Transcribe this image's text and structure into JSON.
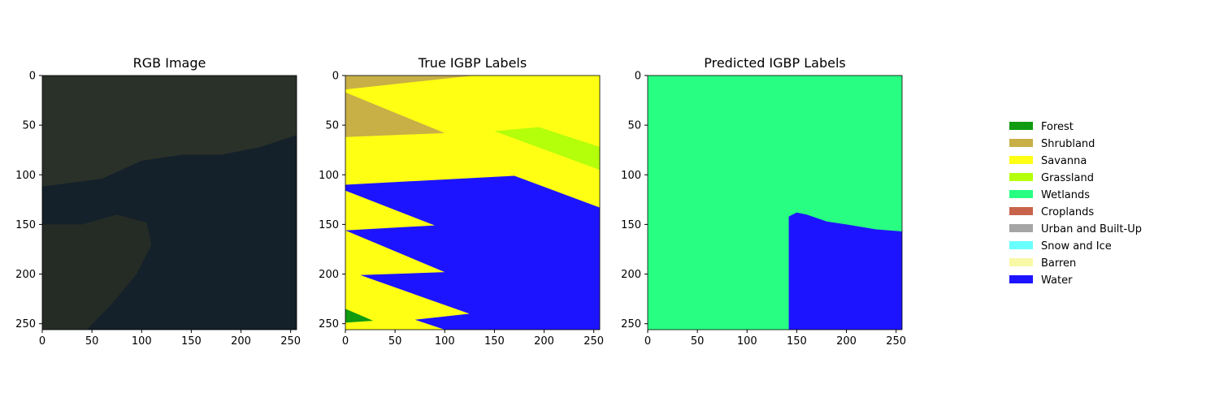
{
  "chart_data": [
    {
      "type": "heatmap",
      "title": "RGB Image",
      "xlim": [
        0,
        256
      ],
      "ylim": [
        256,
        0
      ],
      "xticks": [
        "0",
        "50",
        "100",
        "150",
        "200",
        "250"
      ],
      "yticks": [
        "0",
        "50",
        "100",
        "150",
        "200",
        "250"
      ],
      "regions": [
        {
          "name": "land",
          "color": "#2a3129",
          "points": [
            [
              0,
              0
            ],
            [
              256,
              0
            ],
            [
              256,
              60
            ],
            [
              220,
              72
            ],
            [
              180,
              80
            ],
            [
              140,
              80
            ],
            [
              100,
              86
            ],
            [
              60,
              104
            ],
            [
              0,
              112
            ]
          ]
        },
        {
          "name": "water",
          "color": "#14202a",
          "points": [
            [
              0,
              112
            ],
            [
              60,
              104
            ],
            [
              100,
              86
            ],
            [
              140,
              80
            ],
            [
              180,
              80
            ],
            [
              220,
              72
            ],
            [
              256,
              60
            ],
            [
              256,
              256
            ],
            [
              0,
              256
            ]
          ]
        },
        {
          "name": "island",
          "color": "#252c25",
          "points": [
            [
              0,
              150
            ],
            [
              40,
              150
            ],
            [
              75,
              140
            ],
            [
              105,
              148
            ],
            [
              110,
              170
            ],
            [
              95,
              200
            ],
            [
              70,
              230
            ],
            [
              45,
              256
            ],
            [
              0,
              256
            ]
          ]
        }
      ]
    },
    {
      "type": "heatmap",
      "title": "True IGBP Labels",
      "xlim": [
        0,
        256
      ],
      "ylim": [
        256,
        0
      ],
      "xticks": [
        "0",
        "50",
        "100",
        "150",
        "200",
        "250"
      ],
      "yticks": [
        "0",
        "50",
        "100",
        "150",
        "200",
        "250"
      ],
      "background": "Savanna",
      "regions": [
        {
          "class": "Shrubland",
          "points": [
            [
              0,
              0
            ],
            [
              130,
              0
            ],
            [
              0,
              14
            ]
          ]
        },
        {
          "class": "Shrubland",
          "points": [
            [
              0,
              17
            ],
            [
              100,
              58
            ],
            [
              0,
              62
            ]
          ]
        },
        {
          "class": "Grassland",
          "points": [
            [
              150,
              56
            ],
            [
              195,
              52
            ],
            [
              256,
              72
            ],
            [
              256,
              95
            ]
          ]
        },
        {
          "class": "Water",
          "points": [
            [
              0,
              110
            ],
            [
              170,
              101
            ],
            [
              256,
              133
            ],
            [
              256,
              256
            ],
            [
              100,
              256
            ],
            [
              70,
              246
            ],
            [
              125,
              240
            ],
            [
              15,
              201
            ],
            [
              100,
              198
            ],
            [
              0,
              156
            ],
            [
              90,
              151
            ],
            [
              0,
              116
            ]
          ]
        },
        {
          "class": "Forest",
          "points": [
            [
              0,
              235
            ],
            [
              28,
              247
            ],
            [
              0,
              249
            ]
          ]
        }
      ]
    },
    {
      "type": "heatmap",
      "title": "Predicted IGBP Labels",
      "xlim": [
        0,
        256
      ],
      "ylim": [
        256,
        0
      ],
      "xticks": [
        "0",
        "50",
        "100",
        "150",
        "200",
        "250"
      ],
      "yticks": [
        "0",
        "50",
        "100",
        "150",
        "200",
        "250"
      ],
      "background": "Wetlands",
      "regions": [
        {
          "class": "Water",
          "points": [
            [
              142,
              256
            ],
            [
              142,
              142
            ],
            [
              150,
              138
            ],
            [
              160,
              140
            ],
            [
              180,
              147
            ],
            [
              200,
              150
            ],
            [
              230,
              155
            ],
            [
              256,
              157
            ],
            [
              256,
              256
            ]
          ]
        }
      ]
    }
  ],
  "legend": {
    "placement": "right",
    "entries": [
      {
        "label": "Forest",
        "color": "#109b10"
      },
      {
        "label": "Shrubland",
        "color": "#c8af46"
      },
      {
        "label": "Savanna",
        "color": "#ffff14"
      },
      {
        "label": "Grassland",
        "color": "#b4ff0a"
      },
      {
        "label": "Wetlands",
        "color": "#28ff82"
      },
      {
        "label": "Croplands",
        "color": "#c8644b"
      },
      {
        "label": "Urban and Built-Up",
        "color": "#a5a5a5"
      },
      {
        "label": "Snow and Ice",
        "color": "#69ffff"
      },
      {
        "label": "Barren",
        "color": "#f8f8a6"
      },
      {
        "label": "Water",
        "color": "#1d14ff"
      }
    ]
  }
}
